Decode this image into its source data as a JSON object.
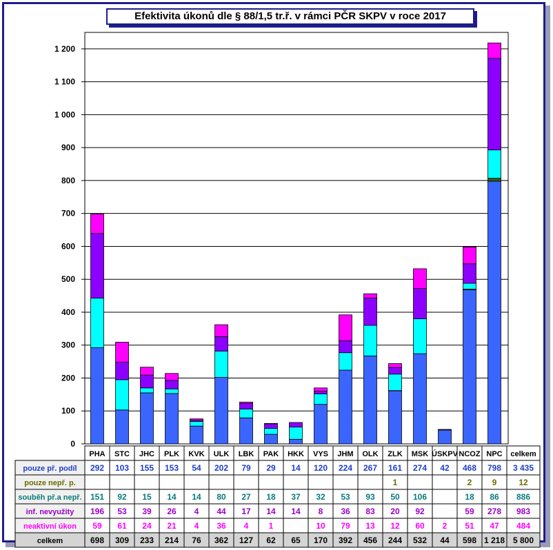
{
  "title": "Efektivita úkonů dle § 88/1,5 tr.ř. v rámci PČR SKPV v roce 2017",
  "chart_data": {
    "type": "bar",
    "stacked": true,
    "categories": [
      "PHA",
      "STC",
      "JHC",
      "PLK",
      "KVK",
      "ULK",
      "LBK",
      "PAK",
      "HKK",
      "VYS",
      "JHM",
      "OLK",
      "ZLK",
      "MSK",
      "ÚSKPV",
      "NCOZ",
      "NPC"
    ],
    "total_column_label": "celkem",
    "ylim": [
      0,
      1250
    ],
    "yticks": [
      0,
      100,
      200,
      300,
      400,
      500,
      600,
      700,
      800,
      900,
      1000,
      1100,
      1200
    ],
    "ytick_labels": [
      "0",
      "100",
      "200",
      "300",
      "400",
      "500",
      "600",
      "700",
      "800",
      "900",
      "1 000",
      "1 100",
      "1 200"
    ],
    "grid": true,
    "series": [
      {
        "name": "pouze př. podíl",
        "color": "#3a66ff",
        "label_color": "#1c3fc8",
        "values": [
          292,
          103,
          155,
          153,
          54,
          202,
          79,
          29,
          14,
          120,
          224,
          267,
          161,
          274,
          42,
          468,
          798
        ],
        "total": "3 435"
      },
      {
        "name": "pouze nepř. p.",
        "color": "#2e5e18",
        "label_color": "#6b6b00",
        "values": [
          null,
          null,
          null,
          null,
          null,
          null,
          null,
          null,
          null,
          null,
          null,
          null,
          1,
          null,
          null,
          2,
          9
        ],
        "total": "12"
      },
      {
        "name": "souběh př.a nepř.",
        "color": "#00ffff",
        "label_color": "#0a7a7a",
        "values": [
          151,
          92,
          15,
          14,
          14,
          80,
          27,
          18,
          37,
          32,
          53,
          93,
          50,
          106,
          null,
          18,
          86
        ],
        "total": "886"
      },
      {
        "name": "inf. nevyužity",
        "color": "#8c00ff",
        "label_color": "#9a00c8",
        "values": [
          196,
          53,
          39,
          26,
          4,
          44,
          17,
          14,
          14,
          8,
          36,
          83,
          20,
          92,
          null,
          59,
          278
        ],
        "total": "983"
      },
      {
        "name": "neaktivní úkon",
        "color": "#ff00ff",
        "label_color": "#ff00ff",
        "values": [
          59,
          61,
          24,
          21,
          4,
          36,
          4,
          1,
          null,
          10,
          79,
          13,
          12,
          60,
          2,
          51,
          47
        ],
        "total": "484"
      }
    ],
    "totals": {
      "name": "celkem",
      "values": [
        "698",
        "309",
        "233",
        "214",
        "76",
        "362",
        "127",
        "62",
        "65",
        "170",
        "392",
        "456",
        "244",
        "532",
        "44",
        "598",
        "1 218"
      ],
      "total": "5 800"
    }
  },
  "colors": {
    "frame": "#1c1c8c",
    "label_bg": "#f0f0f0",
    "total_bg": "#d4d4d4"
  }
}
